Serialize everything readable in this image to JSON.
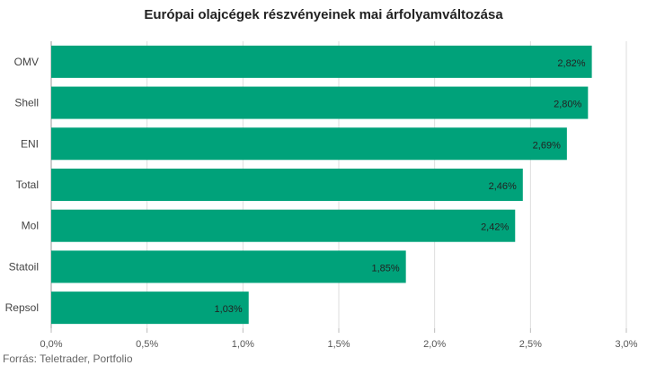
{
  "chart_data": {
    "type": "bar",
    "orientation": "horizontal",
    "title": "Európai olajcégek részvényeinek mai árfolyamváltozása",
    "categories": [
      "OMV",
      "Shell",
      "ENI",
      "Total",
      "Mol",
      "Statoil",
      "Repsol"
    ],
    "values": [
      2.82,
      2.8,
      2.69,
      2.46,
      2.42,
      1.85,
      1.03
    ],
    "data_labels": [
      "2,82%",
      "2,80%",
      "2,69%",
      "2,46%",
      "2,42%",
      "1,85%",
      "1,03%"
    ],
    "xlim": [
      0,
      3.0
    ],
    "x_ticks": [
      0,
      0.5,
      1.0,
      1.5,
      2.0,
      2.5,
      3.0
    ],
    "x_tick_labels": [
      "0,0%",
      "0,5%",
      "1,0%",
      "1,5%",
      "2,0%",
      "2,5%",
      "3,0%"
    ],
    "bar_color": "#00A27A",
    "grid": true,
    "legend": "none"
  },
  "source_text": "Forrás: Teletrader, Portfolio"
}
